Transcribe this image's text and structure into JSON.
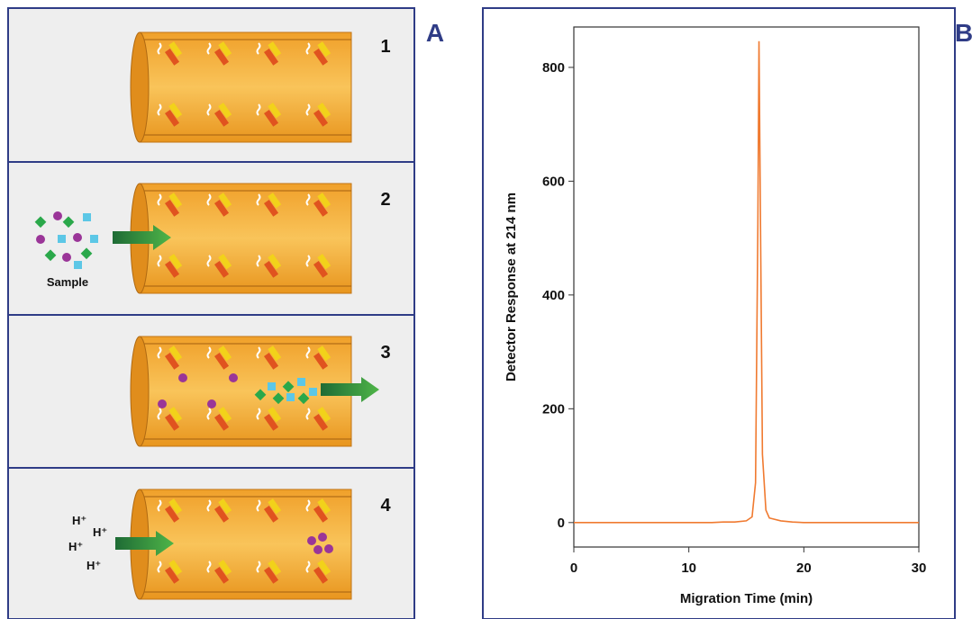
{
  "panel_labels": [
    "A",
    "B"
  ],
  "steps": [
    "1",
    "2",
    "3",
    "4"
  ],
  "sample_label": "Sample",
  "protons": [
    "H⁺",
    "H⁺",
    "H⁺",
    "H⁺"
  ],
  "chart_data": {
    "type": "line",
    "x_label": "Migration Time (min)",
    "y_label": "Detector Response at 214 nm",
    "color": "#f07a30",
    "x": [
      0,
      1,
      2,
      3,
      4,
      5,
      6,
      7,
      8,
      9,
      10,
      11,
      12,
      13,
      14,
      15,
      15.5,
      15.8,
      16.0,
      16.1,
      16.2,
      16.4,
      16.7,
      17,
      18,
      19,
      20,
      21,
      22,
      23,
      24,
      25,
      26,
      27,
      28,
      29,
      30
    ],
    "values": [
      0,
      0,
      0,
      0,
      0,
      0,
      0,
      0,
      0,
      0,
      0,
      0,
      0,
      1,
      1,
      3,
      10,
      70,
      520,
      846,
      600,
      120,
      22,
      8,
      3,
      1,
      0,
      0,
      0,
      0,
      0,
      0,
      0,
      0,
      0,
      0,
      0
    ],
    "xlim": [
      0,
      30
    ],
    "ylim": [
      -43,
      871
    ],
    "xticks": [
      0,
      10,
      20,
      30
    ],
    "yticks": [
      0,
      200,
      400,
      600,
      800
    ]
  }
}
